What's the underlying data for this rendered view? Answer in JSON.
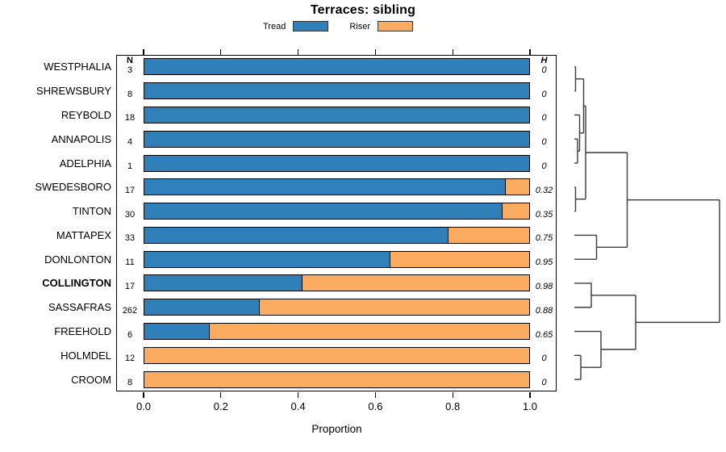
{
  "title": "Terraces: sibling",
  "xlabel": "Proportion",
  "columns": {
    "n_header": "N",
    "h_header": "H"
  },
  "legend_items": [
    {
      "name": "tread",
      "label": "Tread"
    },
    {
      "name": "riser",
      "label": "Riser"
    }
  ],
  "colors": {
    "tread": "#2F7FB8",
    "riser": "#FBAC60",
    "bar_border": "#000000",
    "axis": "#000000",
    "dendrogram": "#3a3a3a"
  },
  "chart_data": {
    "type": "bar",
    "orientation": "horizontal-stacked",
    "title": "Terraces: sibling",
    "xlabel": "Proportion",
    "xlim": [
      0.0,
      1.0
    ],
    "xticks": [
      "0.0",
      "0.2",
      "0.4",
      "0.6",
      "0.8",
      "1.0"
    ],
    "legend_position": "top",
    "series_names": [
      "Tread",
      "Riser"
    ],
    "rows": [
      {
        "label": "WESTPHALIA",
        "n": "3",
        "tread": 1.0,
        "riser": 0.0,
        "h": "0",
        "bold": false
      },
      {
        "label": "SHREWSBURY",
        "n": "8",
        "tread": 1.0,
        "riser": 0.0,
        "h": "0",
        "bold": false
      },
      {
        "label": "REYBOLD",
        "n": "18",
        "tread": 1.0,
        "riser": 0.0,
        "h": "0",
        "bold": false
      },
      {
        "label": "ANNAPOLIS",
        "n": "4",
        "tread": 1.0,
        "riser": 0.0,
        "h": "0",
        "bold": false
      },
      {
        "label": "ADELPHIA",
        "n": "1",
        "tread": 1.0,
        "riser": 0.0,
        "h": "0",
        "bold": false
      },
      {
        "label": "SWEDESBORO",
        "n": "17",
        "tread": 0.94,
        "riser": 0.06,
        "h": "0.32",
        "bold": false
      },
      {
        "label": "TINTON",
        "n": "30",
        "tread": 0.93,
        "riser": 0.07,
        "h": "0.35",
        "bold": false
      },
      {
        "label": "MATTAPEX",
        "n": "33",
        "tread": 0.79,
        "riser": 0.21,
        "h": "0.75",
        "bold": false
      },
      {
        "label": "DONLONTON",
        "n": "11",
        "tread": 0.64,
        "riser": 0.36,
        "h": "0.95",
        "bold": false
      },
      {
        "label": "COLLINGTON",
        "n": "17",
        "tread": 0.41,
        "riser": 0.59,
        "h": "0.98",
        "bold": true
      },
      {
        "label": "SASSAFRAS",
        "n": "262",
        "tread": 0.3,
        "riser": 0.7,
        "h": "0.88",
        "bold": false
      },
      {
        "label": "FREEHOLD",
        "n": "6",
        "tread": 0.17,
        "riser": 0.83,
        "h": "0.65",
        "bold": false
      },
      {
        "label": "HOLMDEL",
        "n": "12",
        "tread": 0.0,
        "riser": 1.0,
        "h": "0",
        "bold": false
      },
      {
        "label": "CROOM",
        "n": "8",
        "tread": 0.0,
        "riser": 1.0,
        "h": "0",
        "bold": false
      }
    ],
    "dendrogram": {
      "orientation": "right",
      "merges": [
        {
          "id": "A",
          "children": [
            "WESTPHALIA",
            "SHREWSBURY"
          ],
          "height": 0.0083
        },
        {
          "id": "B",
          "children": [
            "ANNAPOLIS",
            "ADELPHIA"
          ],
          "height": 0.0222
        },
        {
          "id": "C",
          "children": [
            "REYBOLD",
            "B"
          ],
          "height": 0.0361
        },
        {
          "id": "D",
          "children": [
            "A",
            "C"
          ],
          "height": 0.0639
        },
        {
          "id": "ST",
          "children": [
            "SWEDESBORO",
            "TINTON"
          ],
          "height": 0.0083
        },
        {
          "id": "E",
          "children": [
            "D",
            "ST"
          ],
          "height": 0.0778
        },
        {
          "id": "G",
          "children": [
            "MATTAPEX",
            "DONLONTON"
          ],
          "height": 0.1528
        },
        {
          "id": "F",
          "children": [
            "E",
            "G"
          ],
          "height": 0.3639
        },
        {
          "id": "I",
          "children": [
            "COLLINGTON",
            "SASSAFRAS"
          ],
          "height": 0.1167
        },
        {
          "id": "J",
          "children": [
            "HOLMDEL",
            "CROOM"
          ],
          "height": 0.0444
        },
        {
          "id": "K",
          "children": [
            "FREEHOLD",
            "J"
          ],
          "height": 0.1833
        },
        {
          "id": "L",
          "children": [
            "I",
            "K"
          ],
          "height": 0.4222
        },
        {
          "id": "ROOT",
          "children": [
            "F",
            "L"
          ],
          "height": 1.0
        }
      ]
    }
  }
}
